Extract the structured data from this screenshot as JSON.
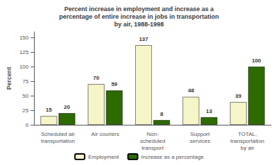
{
  "chart_data": {
    "type": "bar",
    "title": "Percent increase in employment and increase as a\npercentage of entire increase in jobs in transportation\nby air, 1988-1998",
    "categories": [
      "Scheduled air\ntransportation",
      "Air couriers",
      "Non-\nscheduled\ntransport",
      "Support\nservices",
      "TOTAL,\ntransportation\nby air"
    ],
    "series": [
      {
        "name": "Employment",
        "color": "#f5f5c8",
        "values": [
          15,
          70,
          137,
          48,
          39
        ]
      },
      {
        "name": "Increase as a percentage",
        "color": "#2d6a00",
        "values": [
          20,
          59,
          8,
          13,
          100
        ]
      }
    ],
    "ylabel": "Percent",
    "ylim": [
      0,
      160
    ],
    "yticks": [
      0,
      25,
      50,
      75,
      100,
      125,
      150
    ],
    "grid": false,
    "legend": "bottom",
    "data_labels": true
  }
}
